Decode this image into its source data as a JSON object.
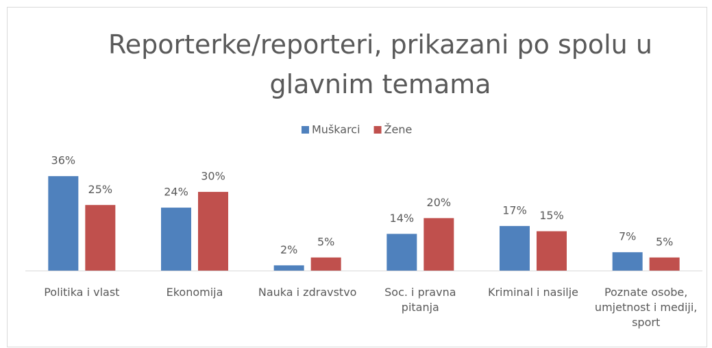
{
  "chart_data": {
    "type": "bar",
    "title": "Reporterke/reporteri, prikazani po spolu u glavnim temama",
    "categories": [
      "Politika i vlast",
      "Ekonomija",
      "Nauka i zdravstvo",
      "Soc. i pravna pitanja",
      "Kriminal i nasilje",
      "Poznate osobe, umjetnost i mediji, sport"
    ],
    "series": [
      {
        "name": "Muškarci",
        "color": "#4f81bd",
        "values": [
          36,
          24,
          2,
          14,
          17,
          7
        ],
        "value_labels": [
          "36%",
          "24%",
          "2%",
          "14%",
          "17%",
          "7%"
        ]
      },
      {
        "name": "Žene",
        "color": "#c0504d",
        "values": [
          25,
          30,
          5,
          20,
          15,
          5
        ],
        "value_labels": [
          "25%",
          "30%",
          "5%",
          "20%",
          "15%",
          "5%"
        ]
      }
    ],
    "legend": "top"
  }
}
